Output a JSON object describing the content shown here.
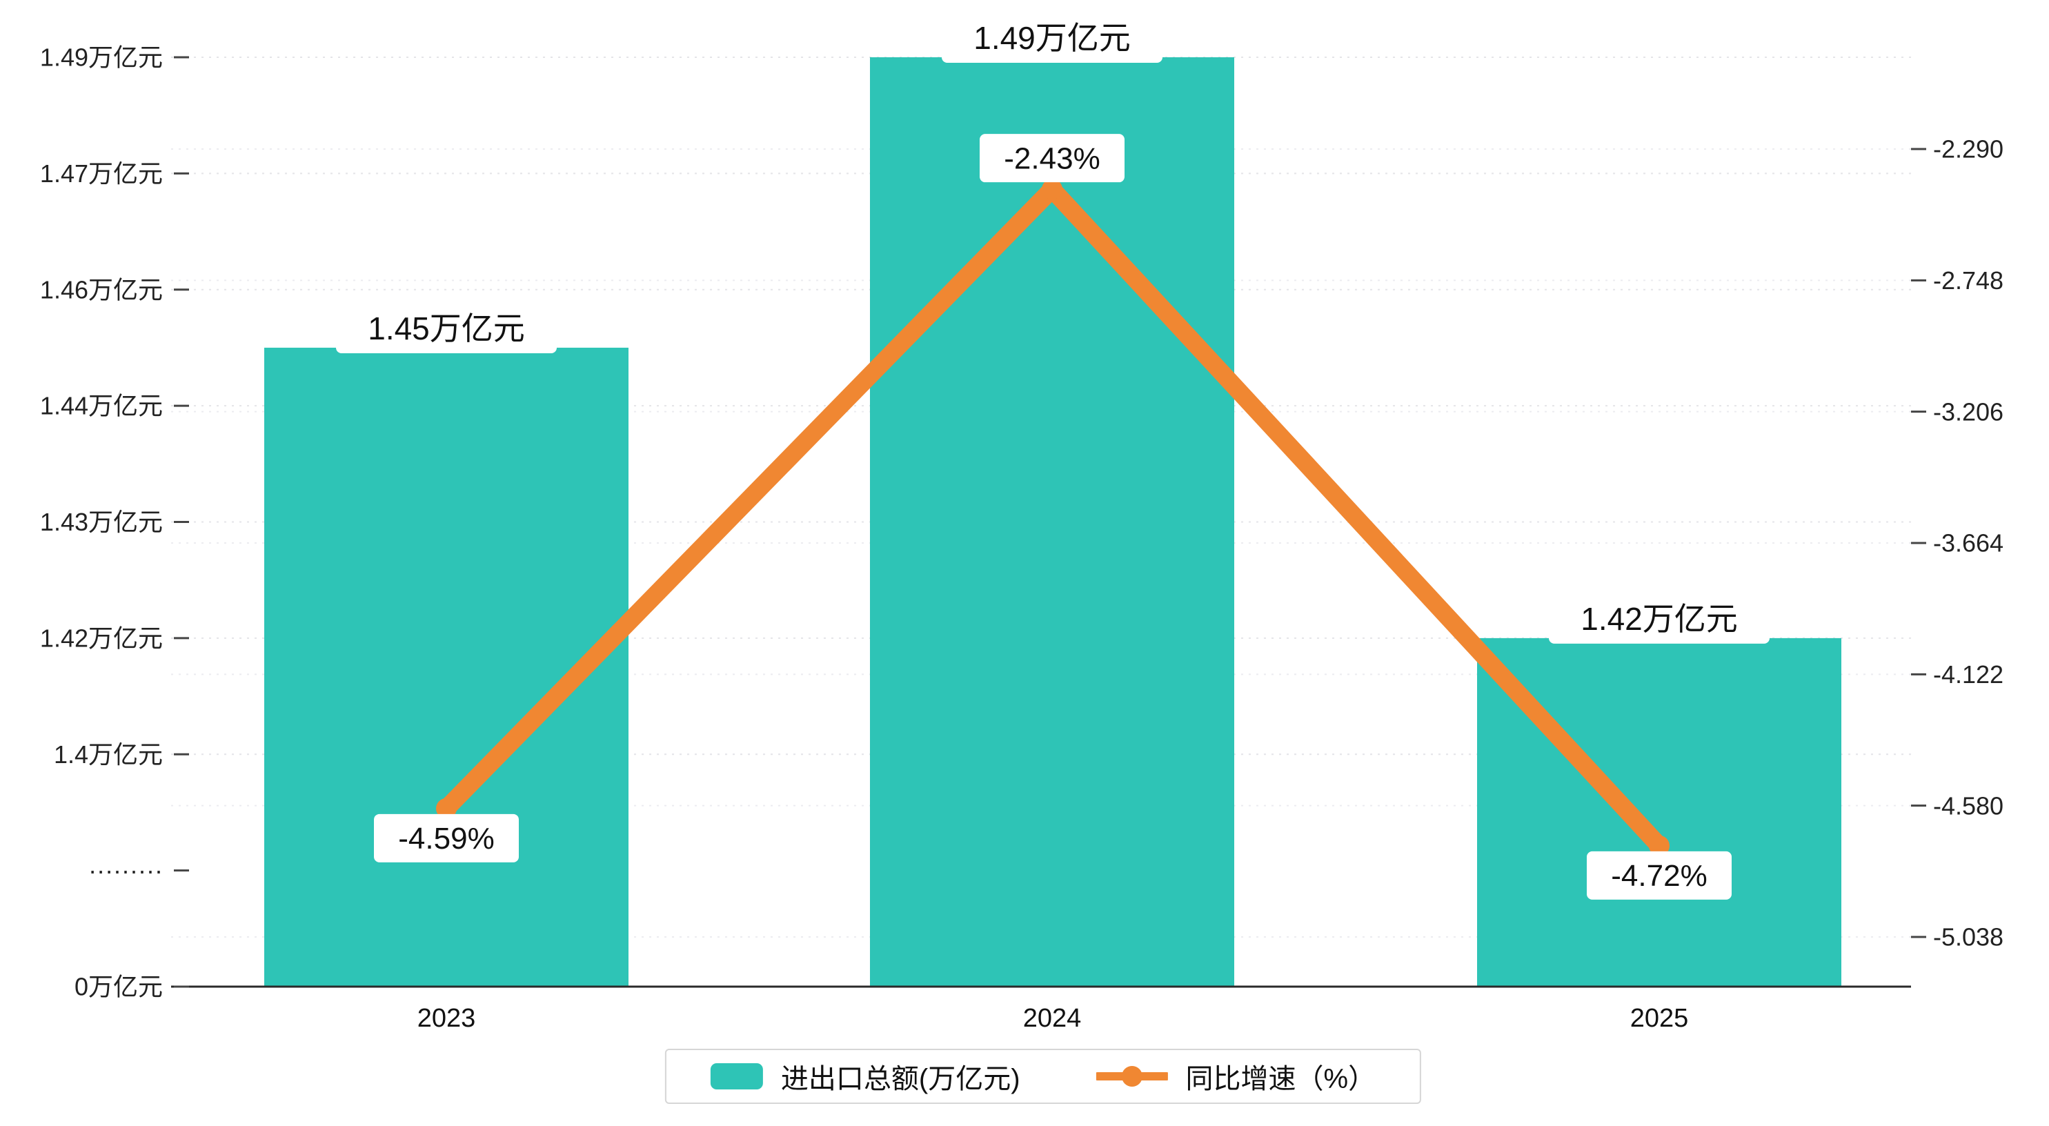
{
  "chart_data": {
    "type": "bar+line",
    "categories": [
      "2023",
      "2024",
      "2025"
    ],
    "series": [
      {
        "name": "进出口总额(万亿元)",
        "type": "bar",
        "axis": "left",
        "values": [
          1.45,
          1.49,
          1.42
        ],
        "data_labels": [
          "1.45万亿元",
          "1.49万亿元",
          "1.42万亿元"
        ],
        "color": "#2ec4b6"
      },
      {
        "name": "同比增速（%）",
        "type": "line",
        "axis": "right",
        "values": [
          -4.59,
          -2.43,
          -4.72
        ],
        "data_labels": [
          "-4.59%",
          "-2.43%",
          "-4.72%"
        ],
        "color": "#f08732"
      }
    ],
    "left_axis": {
      "tick_labels": [
        "1.49万亿元",
        "1.47万亿元",
        "1.46万亿元",
        "1.44万亿元",
        "1.43万亿元",
        "1.42万亿元",
        "1.4万亿元",
        "·········",
        "0万亿元"
      ],
      "tick_values": [
        1.49,
        1.47,
        1.46,
        1.44,
        1.43,
        1.42,
        1.4,
        null,
        0
      ],
      "has_break": true
    },
    "right_axis": {
      "tick_labels": [
        "-2.290",
        "-2.748",
        "-3.206",
        "-3.664",
        "-4.122",
        "-4.580",
        "-5.038"
      ],
      "tick_values": [
        -2.29,
        -2.748,
        -3.206,
        -3.664,
        -4.122,
        -4.58,
        -5.038
      ]
    },
    "legend": [
      {
        "label": "进出口总额(万亿元)",
        "marker": "square",
        "color": "#2ec4b6"
      },
      {
        "label": "同比增速（%）",
        "marker": "line-circle",
        "color": "#f08732"
      }
    ],
    "grid": "dashed horizontal",
    "background": "#ffffff"
  }
}
